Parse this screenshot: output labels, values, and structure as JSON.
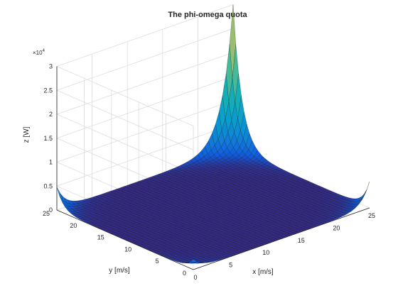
{
  "chart_data": {
    "type": "surface",
    "title": "The phi-omega quota",
    "xlabel": "x [m/s]",
    "ylabel": "y [m/s]",
    "zlabel": "z [W]",
    "z_exponent_label": "×10",
    "z_exponent_power": "4",
    "xlim": [
      0,
      25
    ],
    "ylim": [
      0,
      25
    ],
    "zlim": [
      0,
      30000
    ],
    "x_ticks": [
      "0",
      "5",
      "10",
      "15",
      "20",
      "25"
    ],
    "y_ticks": [
      "0",
      "5",
      "10",
      "15",
      "20",
      "25"
    ],
    "z_ticks": [
      "0",
      "0.5",
      "1",
      "1.5",
      "2",
      "2.5",
      "3"
    ],
    "grid": true,
    "colormap": "parula",
    "base_color": "#2b1f6e",
    "peak_color": "#3cc1b2",
    "peaks": [
      {
        "x": 25,
        "y": 25,
        "z": 30000
      },
      {
        "x": 25,
        "y": 0,
        "z": 5500
      },
      {
        "x": 0,
        "y": 25,
        "z": 4800
      },
      {
        "x": 0,
        "y": 0,
        "z": 2200
      }
    ]
  }
}
